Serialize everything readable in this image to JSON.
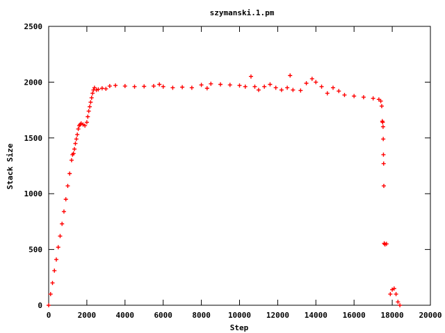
{
  "chart_data": {
    "type": "scatter",
    "title": "szymanski.1.pm",
    "xlabel": "Step",
    "ylabel": "Stack Size",
    "xlim": [
      0,
      20000
    ],
    "ylim": [
      0,
      2500
    ],
    "x_ticks": [
      "0",
      "2000",
      "4000",
      "6000",
      "8000",
      "10000",
      "12000",
      "14000",
      "16000",
      "18000",
      "20000"
    ],
    "y_ticks": [
      "0",
      "500",
      "1000",
      "1500",
      "2000",
      "2500"
    ],
    "grid": false,
    "legend": "none",
    "marker": "plus",
    "series": [
      {
        "color": "#ff0000",
        "points": [
          [
            0,
            0
          ],
          [
            100,
            100
          ],
          [
            200,
            200
          ],
          [
            300,
            310
          ],
          [
            400,
            410
          ],
          [
            500,
            520
          ],
          [
            600,
            620
          ],
          [
            700,
            730
          ],
          [
            800,
            840
          ],
          [
            900,
            950
          ],
          [
            1000,
            1070
          ],
          [
            1100,
            1180
          ],
          [
            1200,
            1300
          ],
          [
            1250,
            1350
          ],
          [
            1300,
            1360
          ],
          [
            1350,
            1400
          ],
          [
            1400,
            1450
          ],
          [
            1450,
            1490
          ],
          [
            1500,
            1530
          ],
          [
            1550,
            1580
          ],
          [
            1600,
            1610
          ],
          [
            1650,
            1620
          ],
          [
            1700,
            1630
          ],
          [
            1800,
            1620
          ],
          [
            1900,
            1610
          ],
          [
            2000,
            1640
          ],
          [
            2050,
            1690
          ],
          [
            2100,
            1740
          ],
          [
            2150,
            1780
          ],
          [
            2200,
            1820
          ],
          [
            2250,
            1860
          ],
          [
            2300,
            1900
          ],
          [
            2350,
            1930
          ],
          [
            2400,
            1950
          ],
          [
            2500,
            1930
          ],
          [
            2600,
            1935
          ],
          [
            2800,
            1945
          ],
          [
            3000,
            1940
          ],
          [
            3200,
            1965
          ],
          [
            3500,
            1970
          ],
          [
            4000,
            1965
          ],
          [
            4500,
            1960
          ],
          [
            5000,
            1962
          ],
          [
            5500,
            1965
          ],
          [
            5800,
            1980
          ],
          [
            6000,
            1960
          ],
          [
            6500,
            1950
          ],
          [
            7000,
            1955
          ],
          [
            7500,
            1950
          ],
          [
            8000,
            1975
          ],
          [
            8300,
            1945
          ],
          [
            8500,
            1985
          ],
          [
            9000,
            1980
          ],
          [
            9500,
            1975
          ],
          [
            10000,
            1970
          ],
          [
            10300,
            1960
          ],
          [
            10600,
            2050
          ],
          [
            10800,
            1960
          ],
          [
            11000,
            1930
          ],
          [
            11300,
            1960
          ],
          [
            11600,
            1980
          ],
          [
            11900,
            1950
          ],
          [
            12200,
            1930
          ],
          [
            12500,
            1950
          ],
          [
            12650,
            2060
          ],
          [
            12800,
            1930
          ],
          [
            13200,
            1925
          ],
          [
            13500,
            1990
          ],
          [
            13800,
            2030
          ],
          [
            14000,
            2000
          ],
          [
            14300,
            1960
          ],
          [
            14600,
            1900
          ],
          [
            14900,
            1950
          ],
          [
            15200,
            1920
          ],
          [
            15500,
            1885
          ],
          [
            16000,
            1875
          ],
          [
            16500,
            1865
          ],
          [
            17000,
            1855
          ],
          [
            17300,
            1845
          ],
          [
            17400,
            1830
          ],
          [
            17450,
            1785
          ],
          [
            17480,
            1650
          ],
          [
            17500,
            1640
          ],
          [
            17520,
            1600
          ],
          [
            17530,
            1490
          ],
          [
            17540,
            1350
          ],
          [
            17550,
            1270
          ],
          [
            17560,
            1070
          ],
          [
            17580,
            555
          ],
          [
            17620,
            545
          ],
          [
            17700,
            550
          ],
          [
            17900,
            100
          ],
          [
            18000,
            140
          ],
          [
            18100,
            150
          ],
          [
            18200,
            100
          ],
          [
            18300,
            30
          ],
          [
            18400,
            0
          ]
        ]
      }
    ]
  }
}
